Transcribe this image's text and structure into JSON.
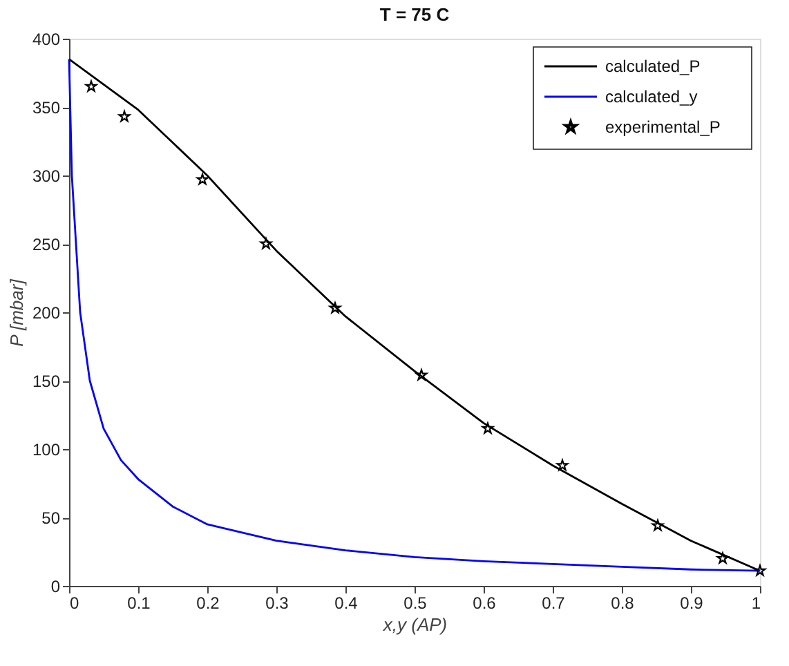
{
  "chart_data": {
    "type": "line",
    "title": "T = 75 C",
    "xlabel": "x,y (AP)",
    "ylabel": "P [mbar]",
    "xlim": [
      0,
      1
    ],
    "xticks": [
      0,
      0.1,
      0.2,
      0.3,
      0.4,
      0.5,
      0.6,
      0.7,
      0.8,
      0.9,
      1
    ],
    "ylim": [
      0,
      400
    ],
    "yticks": [
      0,
      50,
      100,
      150,
      200,
      250,
      300,
      350,
      400
    ],
    "grid": false,
    "legend": "top right",
    "series": [
      {
        "name": "calculated_P",
        "type": "line",
        "color": "#000000",
        "line_style": "solid",
        "x": [
          0,
          0.1,
          0.2,
          0.3,
          0.4,
          0.5,
          0.6,
          0.7,
          0.8,
          0.9,
          1
        ],
        "values": [
          385,
          348,
          300,
          245,
          197,
          157,
          119,
          88,
          60,
          33,
          11
        ]
      },
      {
        "name": "calculated_y",
        "type": "line",
        "color": "#0000ff",
        "line_style": "solid",
        "x": [
          0,
          0.004,
          0.016,
          0.03,
          0.05,
          0.075,
          0.1,
          0.15,
          0.2,
          0.3,
          0.4,
          0.5,
          0.6,
          0.7,
          0.8,
          0.9,
          1
        ],
        "values": [
          385,
          300,
          200,
          150,
          115,
          92,
          78,
          58,
          45,
          33,
          26,
          21,
          18,
          16,
          14,
          12,
          11
        ]
      },
      {
        "name": "experimental_P",
        "type": "scatter",
        "color": "#000000",
        "marker": "star",
        "x": [
          0.032,
          0.08,
          0.193,
          0.285,
          0.385,
          0.51,
          0.606,
          0.714,
          0.852,
          0.946,
          1
        ],
        "values": [
          365,
          343,
          297,
          250,
          203,
          154,
          115,
          88,
          44,
          20,
          11
        ]
      }
    ]
  }
}
